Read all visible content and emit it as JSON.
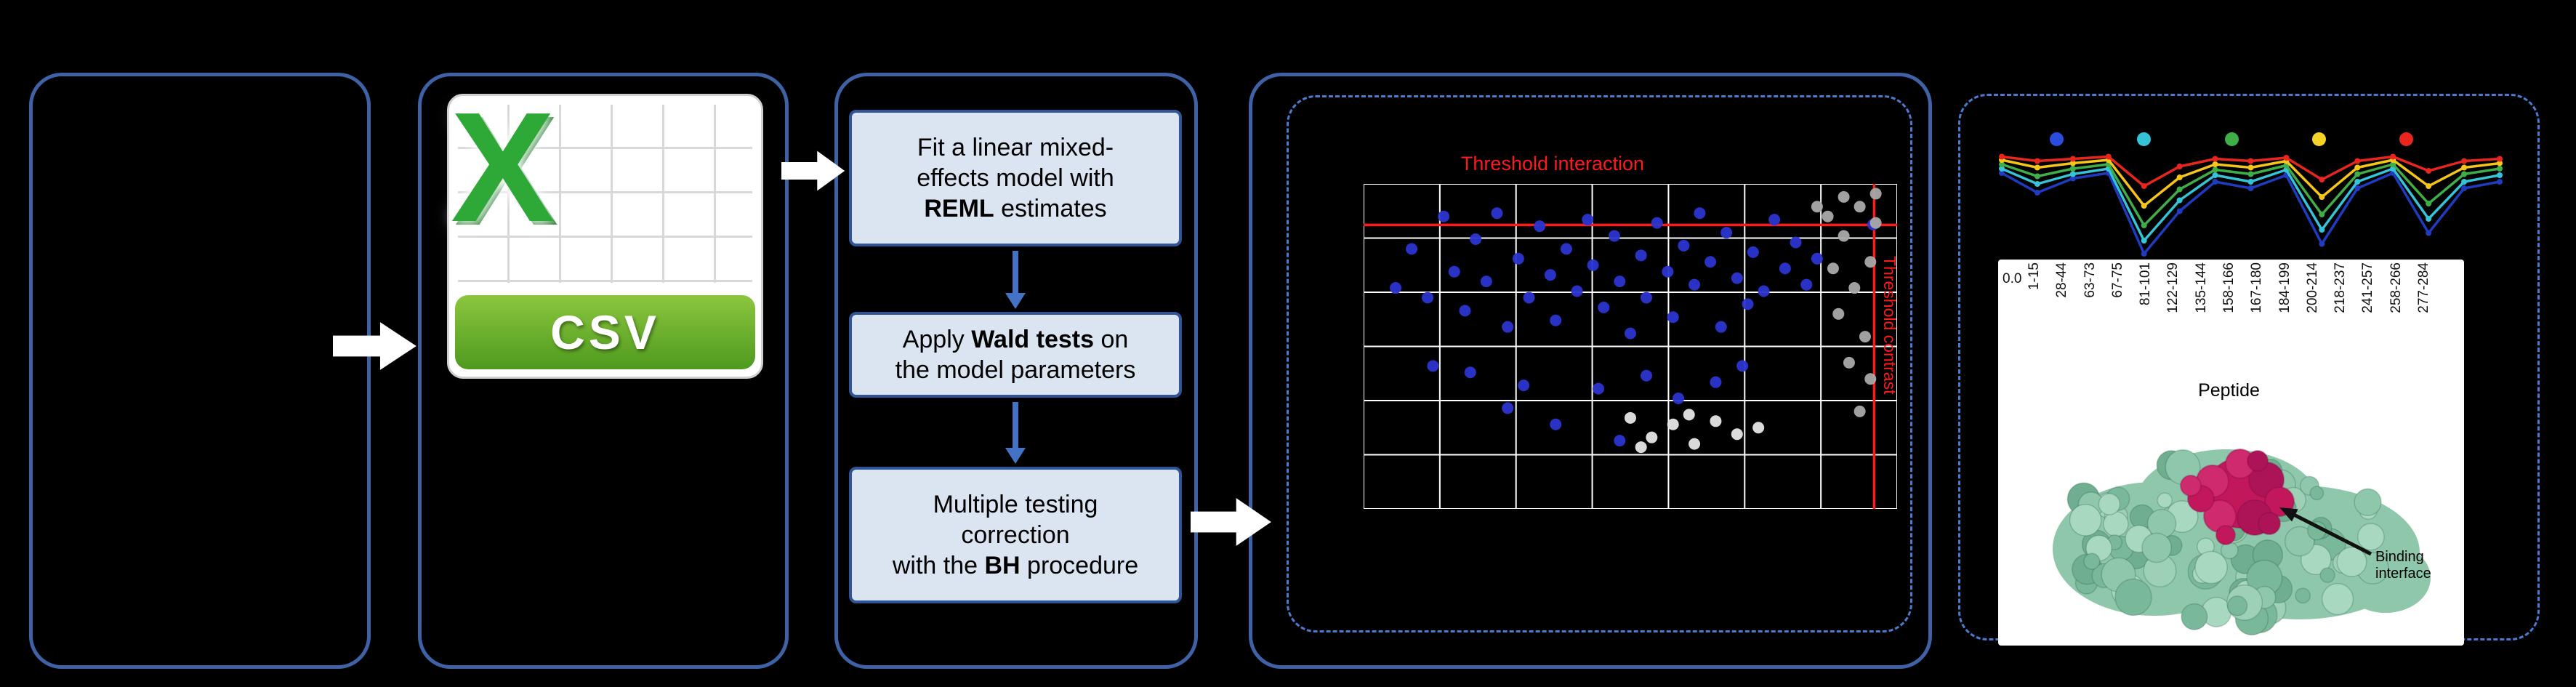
{
  "colors": {
    "background": "#000000",
    "panel_border": "#3f62a7",
    "dashed_border": "#4a7bd0",
    "box_fill": "#dbe5f1",
    "box_border": "#2f5597",
    "flow_arrow": "#4472c4",
    "threshold_red": "#ff1a1a",
    "csv_green_light": "#8cc63f",
    "csv_green_dark": "#4e9a1e",
    "csv_x_green": "#2ea836"
  },
  "csv": {
    "label": "CSV",
    "logo_letter": "X"
  },
  "pipeline": {
    "steps": [
      {
        "pre": "Fit a linear mixed-\neffects model with\n",
        "bold": "REML",
        "post": " estimates"
      },
      {
        "pre": "Apply ",
        "bold": "Wald tests",
        "post": " on\nthe model parameters"
      },
      {
        "pre": "Multiple testing\ncorrection\nwith the ",
        "bold": "BH",
        "post": " procedure"
      }
    ]
  },
  "structure": {
    "annotation": "Binding interface",
    "surface_colors": [
      "#9ed0b5",
      "#8fc7aa",
      "#7ab89a",
      "#a8d8bf",
      "#6fae8e"
    ],
    "surface_base": "#8fc7aa",
    "interface_colors": [
      "#c2185b",
      "#d02a6e",
      "#ad1457"
    ],
    "arrow_color": "#111111"
  },
  "chart_data": [
    {
      "type": "scatter",
      "title": "Threshold interaction",
      "xlabel": "",
      "ylabel": "",
      "grid": {
        "cols": 7,
        "rows": 6,
        "color": "#ffffff"
      },
      "coord_space": "fraction-of-plot-area (x right, y down)",
      "thresholds": {
        "horizontal_frac": 0.126,
        "vertical_frac": 0.957,
        "horizontal_label": "Threshold interaction",
        "vertical_label": "Threshold contrast",
        "color": "#ff1a1a"
      },
      "series": [
        {
          "name": "significant-points",
          "color": "#2b35cf",
          "points": [
            [
              0.06,
              0.32
            ],
            [
              0.09,
              0.2
            ],
            [
              0.12,
              0.35
            ],
            [
              0.15,
              0.1
            ],
            [
              0.17,
              0.27
            ],
            [
              0.19,
              0.39
            ],
            [
              0.21,
              0.17
            ],
            [
              0.23,
              0.3
            ],
            [
              0.25,
              0.09
            ],
            [
              0.27,
              0.44
            ],
            [
              0.29,
              0.23
            ],
            [
              0.31,
              0.35
            ],
            [
              0.33,
              0.13
            ],
            [
              0.35,
              0.28
            ],
            [
              0.36,
              0.42
            ],
            [
              0.38,
              0.2
            ],
            [
              0.4,
              0.33
            ],
            [
              0.42,
              0.11
            ],
            [
              0.43,
              0.25
            ],
            [
              0.45,
              0.38
            ],
            [
              0.47,
              0.16
            ],
            [
              0.48,
              0.3
            ],
            [
              0.5,
              0.46
            ],
            [
              0.52,
              0.22
            ],
            [
              0.53,
              0.35
            ],
            [
              0.55,
              0.12
            ],
            [
              0.57,
              0.27
            ],
            [
              0.58,
              0.41
            ],
            [
              0.6,
              0.19
            ],
            [
              0.62,
              0.31
            ],
            [
              0.63,
              0.09
            ],
            [
              0.65,
              0.24
            ],
            [
              0.67,
              0.44
            ],
            [
              0.68,
              0.15
            ],
            [
              0.7,
              0.29
            ],
            [
              0.72,
              0.37
            ],
            [
              0.73,
              0.21
            ],
            [
              0.75,
              0.33
            ],
            [
              0.77,
              0.11
            ],
            [
              0.79,
              0.26
            ],
            [
              0.81,
              0.18
            ],
            [
              0.83,
              0.31
            ],
            [
              0.85,
              0.23
            ],
            [
              0.3,
              0.62
            ],
            [
              0.36,
              0.74
            ],
            [
              0.48,
              0.79
            ],
            [
              0.53,
              0.59
            ],
            [
              0.27,
              0.69
            ],
            [
              0.59,
              0.66
            ],
            [
              0.13,
              0.56
            ],
            [
              0.71,
              0.56
            ],
            [
              0.44,
              0.63
            ],
            [
              0.2,
              0.58
            ],
            [
              0.66,
              0.61
            ],
            [
              0.955,
              0.125
            ]
          ]
        },
        {
          "name": "non-significant-points",
          "color": "#a9a9a9",
          "points": [
            [
              0.87,
              0.1
            ],
            [
              0.9,
              0.16
            ],
            [
              0.93,
              0.07
            ],
            [
              0.95,
              0.24
            ],
            [
              0.92,
              0.32
            ],
            [
              0.89,
              0.4
            ],
            [
              0.94,
              0.47
            ],
            [
              0.96,
              0.12
            ],
            [
              0.91,
              0.55
            ],
            [
              0.88,
              0.26
            ],
            [
              0.95,
              0.6
            ],
            [
              0.93,
              0.7
            ],
            [
              0.9,
              0.04
            ],
            [
              0.96,
              0.03
            ],
            [
              0.85,
              0.07
            ]
          ]
        },
        {
          "name": "faint-points",
          "color": "#e6e6e6",
          "points": [
            [
              0.5,
              0.72
            ],
            [
              0.54,
              0.78
            ],
            [
              0.58,
              0.74
            ],
            [
              0.62,
              0.8
            ],
            [
              0.66,
              0.73
            ],
            [
              0.7,
              0.77
            ],
            [
              0.74,
              0.75
            ],
            [
              0.52,
              0.81
            ],
            [
              0.61,
              0.71
            ]
          ]
        }
      ]
    },
    {
      "type": "line",
      "xlabel": "Peptide",
      "y_tick_label": "0.0",
      "categories": [
        "1-15",
        "28-44",
        "63-73",
        "67-75",
        "81-101",
        "122-129",
        "135-144",
        "158-166",
        "167-180",
        "184-199",
        "200-214",
        "218-237",
        "241-257",
        "258-266",
        "277-284"
      ],
      "legend_dot_colors": [
        "#2a4ddd",
        "#35c4d7",
        "#3fae49",
        "#f5d327",
        "#e8261d"
      ],
      "value_space": "fraction-of-axis (1 = top baseline)",
      "series": [
        {
          "name": "series-blue",
          "color": "#1f3bbf",
          "values": [
            0.8,
            0.62,
            0.75,
            0.8,
            0.06,
            0.45,
            0.72,
            0.66,
            0.78,
            0.15,
            0.66,
            0.8,
            0.25,
            0.66,
            0.72
          ]
        },
        {
          "name": "series-cyan",
          "color": "#35c4d7",
          "values": [
            0.84,
            0.7,
            0.79,
            0.84,
            0.18,
            0.55,
            0.78,
            0.72,
            0.83,
            0.28,
            0.72,
            0.84,
            0.38,
            0.72,
            0.78
          ]
        },
        {
          "name": "series-green",
          "color": "#3fae49",
          "values": [
            0.88,
            0.77,
            0.84,
            0.88,
            0.32,
            0.65,
            0.83,
            0.79,
            0.87,
            0.42,
            0.79,
            0.88,
            0.52,
            0.79,
            0.84
          ]
        },
        {
          "name": "series-yellow",
          "color": "#f5c518",
          "values": [
            0.92,
            0.85,
            0.89,
            0.92,
            0.5,
            0.76,
            0.88,
            0.85,
            0.91,
            0.58,
            0.85,
            0.92,
            0.68,
            0.85,
            0.89
          ]
        },
        {
          "name": "series-red",
          "color": "#e8261d",
          "values": [
            0.95,
            0.91,
            0.93,
            0.95,
            0.68,
            0.86,
            0.93,
            0.91,
            0.94,
            0.74,
            0.91,
            0.95,
            0.82,
            0.91,
            0.93
          ]
        }
      ]
    }
  ]
}
